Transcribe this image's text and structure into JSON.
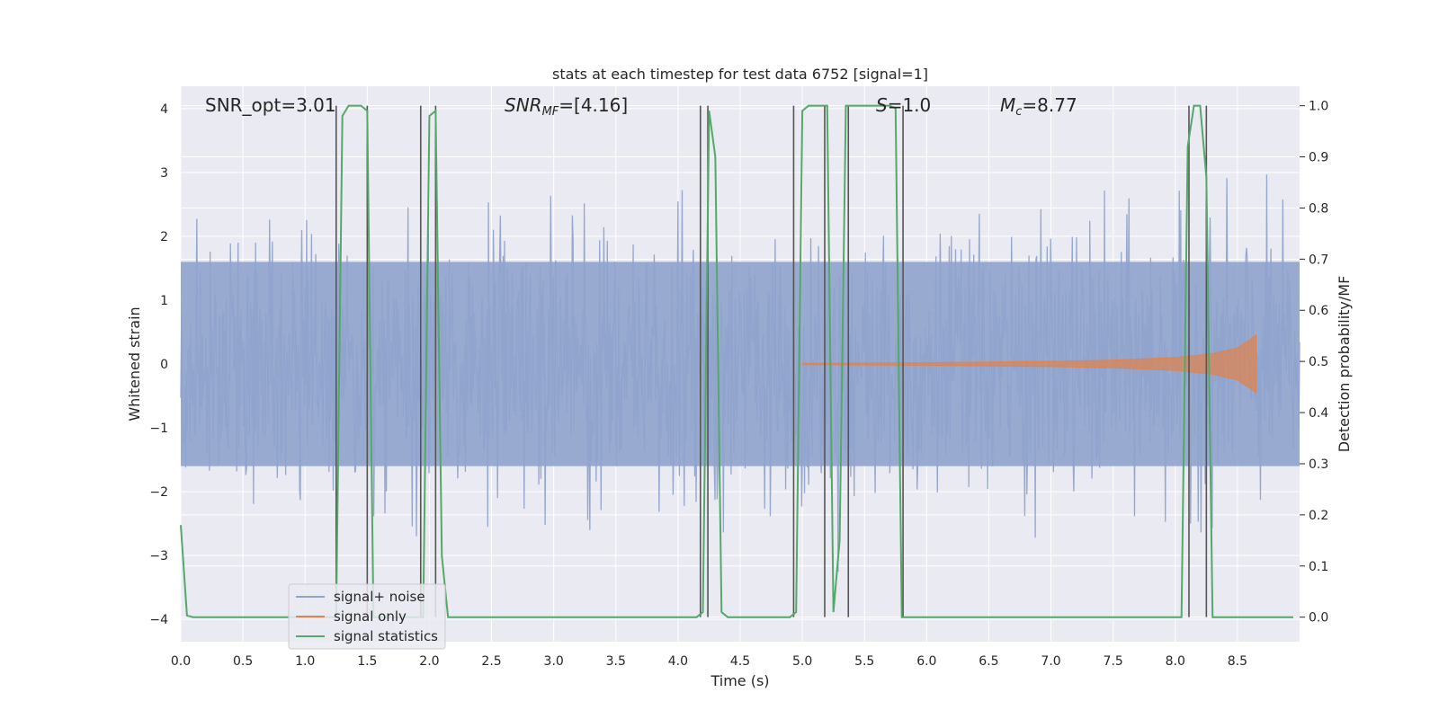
{
  "chart_data": {
    "type": "line",
    "title": "stats at each timestep for test data 6752 [signal=1]",
    "xlabel": "Time (s)",
    "ylabel": "Whitened strain",
    "y2label": "Detection probability/MF",
    "xlim": [
      0.0,
      9.0
    ],
    "ylim": [
      -4.35,
      4.35
    ],
    "y2lim": [
      -0.048,
      1.038
    ],
    "x_ticks": [
      0.0,
      0.5,
      1.0,
      1.5,
      2.0,
      2.5,
      3.0,
      3.5,
      4.0,
      4.5,
      5.0,
      5.5,
      6.0,
      6.5,
      7.0,
      7.5,
      8.0,
      8.5
    ],
    "x_tick_labels": [
      "0.0",
      "0.5",
      "1.0",
      "1.5",
      "2.0",
      "2.5",
      "3.0",
      "3.5",
      "4.0",
      "4.5",
      "5.0",
      "5.5",
      "6.0",
      "6.5",
      "7.0",
      "7.5",
      "8.0",
      "8.5"
    ],
    "y_ticks": [
      -4,
      -3,
      -2,
      -1,
      0,
      1,
      2,
      3,
      4
    ],
    "y_tick_labels": [
      "−4",
      "−3",
      "−2",
      "−1",
      "0",
      "1",
      "2",
      "3",
      "4"
    ],
    "y2_ticks": [
      0.0,
      0.1,
      0.2,
      0.3,
      0.4,
      0.5,
      0.6,
      0.7,
      0.8,
      0.9,
      1.0
    ],
    "y2_tick_labels": [
      "0.0",
      "0.1",
      "0.2",
      "0.3",
      "0.4",
      "0.5",
      "0.6",
      "0.7",
      "0.8",
      "0.9",
      "1.0"
    ],
    "grid": true,
    "legend_position": "lower-left",
    "annotations": [
      {
        "text": "SNR_opt=3.01",
        "x": 0.2,
        "y": 4.1
      },
      {
        "text": "SNR_MF=[4.16]",
        "x": 2.6,
        "y": 4.1
      },
      {
        "text": "S=1.0",
        "x": 5.6,
        "y": 4.1
      },
      {
        "text": "M_c=8.77",
        "x": 6.6,
        "y": 4.1
      }
    ],
    "series": [
      {
        "name": "signal+ noise",
        "color": "#8fa3cc",
        "axis": "left",
        "kind": "noise",
        "x_range": [
          0.0,
          9.0
        ],
        "band_y": 1.6,
        "peak_y": 3.6
      },
      {
        "name": "signal only",
        "color": "#dd8452",
        "axis": "left",
        "kind": "chirp",
        "x_range": [
          5.0,
          8.65
        ],
        "x": [
          5.0,
          6.0,
          7.0,
          7.5,
          8.0,
          8.3,
          8.5,
          8.6,
          8.65
        ],
        "amplitude": [
          0.01,
          0.02,
          0.04,
          0.06,
          0.1,
          0.16,
          0.25,
          0.38,
          0.45
        ]
      },
      {
        "name": "signal statistics",
        "color": "#55a868",
        "axis": "right",
        "x": [
          0.0,
          0.05,
          0.1,
          0.15,
          0.2,
          0.25,
          0.3,
          0.35,
          0.4,
          0.45,
          0.5,
          0.55,
          0.6,
          0.65,
          0.7,
          0.75,
          0.8,
          0.85,
          0.9,
          0.95,
          1.0,
          1.05,
          1.1,
          1.15,
          1.2,
          1.25,
          1.3,
          1.35,
          1.4,
          1.45,
          1.5,
          1.55,
          1.6,
          1.65,
          1.7,
          1.75,
          1.8,
          1.85,
          1.9,
          1.95,
          2.0,
          2.05,
          2.1,
          2.15,
          2.2,
          2.25,
          2.3,
          4.1,
          4.15,
          4.2,
          4.25,
          4.3,
          4.35,
          4.4,
          4.45,
          4.5,
          4.85,
          4.9,
          4.95,
          5.0,
          5.05,
          5.1,
          5.15,
          5.2,
          5.25,
          5.3,
          5.35,
          5.4,
          5.45,
          5.5,
          5.55,
          5.6,
          5.65,
          5.7,
          5.75,
          5.8,
          5.85,
          5.9,
          5.95,
          6.0,
          8.05,
          8.1,
          8.15,
          8.2,
          8.25,
          8.3,
          8.35,
          8.4,
          8.45,
          8.95
        ],
        "values": [
          0.18,
          0.003,
          0.0,
          0.0,
          0.0,
          0.0,
          0.0,
          0.0,
          0.0,
          0.0,
          0.0,
          0.0,
          0.0,
          0.0,
          0.0,
          0.0,
          0.0,
          0.0,
          0.0,
          0.0,
          0.0,
          0.0,
          0.0,
          0.0,
          0.0,
          0.0,
          0.98,
          1.0,
          1.0,
          1.0,
          0.99,
          0.0,
          0.0,
          0.0,
          0.0,
          0.0,
          0.0,
          0.0,
          0.0,
          0.0,
          0.98,
          0.99,
          0.12,
          0.0,
          0.0,
          0.0,
          0.0,
          0.0,
          0.0,
          0.01,
          0.99,
          0.9,
          0.01,
          0.0,
          0.0,
          0.0,
          0.0,
          0.0,
          0.01,
          0.99,
          1.0,
          1.0,
          1.0,
          1.0,
          0.01,
          0.15,
          1.0,
          1.0,
          1.0,
          1.0,
          1.0,
          1.0,
          1.0,
          1.0,
          0.995,
          0.0,
          0.0,
          0.0,
          0.0,
          0.0,
          0.0,
          0.92,
          1.0,
          1.0,
          0.86,
          0.0,
          0.0,
          0.0,
          0.0,
          0.0
        ]
      }
    ],
    "vlines": {
      "color": "#555555",
      "x": [
        1.25,
        1.5,
        1.93,
        2.05,
        4.18,
        4.24,
        4.93,
        5.18,
        5.37,
        5.81,
        8.11,
        8.25
      ]
    }
  }
}
